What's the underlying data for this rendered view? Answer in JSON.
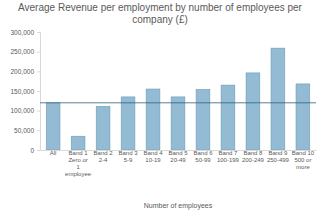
{
  "chart_data": {
    "type": "bar",
    "title": "Average Revenue per employment by number of employees per company (£)",
    "x_label": "Number of employees",
    "categories": [
      "All",
      "Band 1 Zero or 1 employee",
      "Band 2 2-4",
      "Band 3 5-9",
      "Band 4 10-19",
      "Band 5 20-49",
      "Band 6 50-99",
      "Band 7 100-199",
      "Band 8 200-249",
      "Band 9 250-499",
      "Band 10 500 or more"
    ],
    "values": [
      120000,
      35000,
      111000,
      135000,
      155000,
      135000,
      154000,
      165000,
      196000,
      259000,
      168000
    ],
    "color": "#93bcd4",
    "ylim": [
      0,
      300000
    ],
    "yticks": [
      0,
      {
        "value": 50000,
        "label": "50,000"
      },
      {
        "value": 100000,
        "label": "100,000"
      },
      {
        "value": 150000,
        "label": "150,000"
      },
      {
        "value": 200000,
        "label": "200,000"
      },
      {
        "value": 250000,
        "label": "250,000"
      },
      {
        "value": 300000,
        "label": "300,000"
      }
    ],
    "grid": false
  }
}
